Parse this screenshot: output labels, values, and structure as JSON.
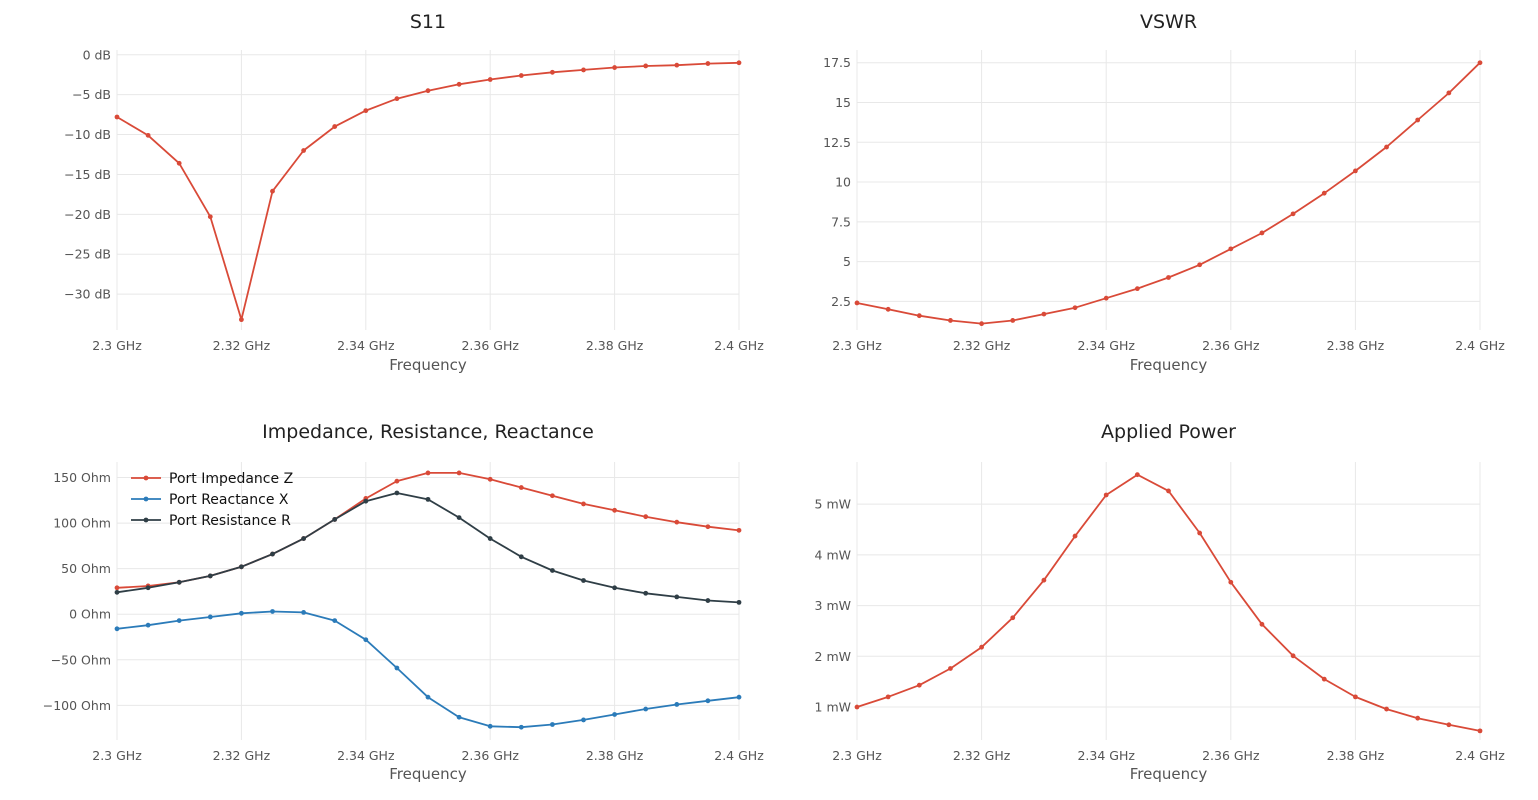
{
  "colors": {
    "red": "#d94a38",
    "blue": "#2b7bb9",
    "dark": "#2f3e46",
    "grid": "#e8e8e8"
  },
  "chart_data": [
    {
      "type": "line",
      "title": "S11",
      "xlabel": "Frequency",
      "ylabel": "",
      "x": [
        2.3,
        2.305,
        2.31,
        2.315,
        2.32,
        2.325,
        2.33,
        2.335,
        2.34,
        2.345,
        2.35,
        2.355,
        2.36,
        2.365,
        2.37,
        2.375,
        2.38,
        2.385,
        2.39,
        2.395,
        2.4
      ],
      "xlim": [
        2.3,
        2.4
      ],
      "ylim": [
        -34.5,
        0.6
      ],
      "x_ticks": [
        {
          "v": 2.3,
          "label": "2.3 GHz"
        },
        {
          "v": 2.32,
          "label": "2.32 GHz"
        },
        {
          "v": 2.34,
          "label": "2.34 GHz"
        },
        {
          "v": 2.36,
          "label": "2.36 GHz"
        },
        {
          "v": 2.38,
          "label": "2.38 GHz"
        },
        {
          "v": 2.4,
          "label": "2.4 GHz"
        }
      ],
      "y_ticks": [
        {
          "v": 0,
          "label": "0 dB"
        },
        {
          "v": -5,
          "label": "−5 dB"
        },
        {
          "v": -10,
          "label": "−10 dB"
        },
        {
          "v": -15,
          "label": "−15 dB"
        },
        {
          "v": -20,
          "label": "−20 dB"
        },
        {
          "v": -25,
          "label": "−25 dB"
        },
        {
          "v": -30,
          "label": "−30 dB"
        }
      ],
      "grid": true,
      "series": [
        {
          "color": "#d94a38",
          "values": [
            -7.8,
            -10.1,
            -13.6,
            -20.3,
            -33.2,
            -17.1,
            -12.0,
            -9.0,
            -7.0,
            -5.5,
            -4.5,
            -3.7,
            -3.1,
            -2.6,
            -2.2,
            -1.9,
            -1.6,
            -1.4,
            -1.3,
            -1.1,
            -1.0
          ]
        }
      ]
    },
    {
      "type": "line",
      "title": "VSWR",
      "xlabel": "Frequency",
      "ylabel": "",
      "x": [
        2.3,
        2.305,
        2.31,
        2.315,
        2.32,
        2.325,
        2.33,
        2.335,
        2.34,
        2.345,
        2.35,
        2.355,
        2.36,
        2.365,
        2.37,
        2.375,
        2.38,
        2.385,
        2.39,
        2.395,
        2.4
      ],
      "xlim": [
        2.3,
        2.4
      ],
      "ylim": [
        0.7,
        18.3
      ],
      "x_ticks": [
        {
          "v": 2.3,
          "label": "2.3 GHz"
        },
        {
          "v": 2.32,
          "label": "2.32 GHz"
        },
        {
          "v": 2.34,
          "label": "2.34 GHz"
        },
        {
          "v": 2.36,
          "label": "2.36 GHz"
        },
        {
          "v": 2.38,
          "label": "2.38 GHz"
        },
        {
          "v": 2.4,
          "label": "2.4 GHz"
        }
      ],
      "y_ticks": [
        {
          "v": 2.5,
          "label": "2.5"
        },
        {
          "v": 5,
          "label": "5"
        },
        {
          "v": 7.5,
          "label": "7.5"
        },
        {
          "v": 10,
          "label": "10"
        },
        {
          "v": 12.5,
          "label": "12.5"
        },
        {
          "v": 15,
          "label": "15"
        },
        {
          "v": 17.5,
          "label": "17.5"
        }
      ],
      "grid": true,
      "series": [
        {
          "color": "#d94a38",
          "values": [
            2.4,
            2.0,
            1.6,
            1.3,
            1.1,
            1.3,
            1.7,
            2.1,
            2.7,
            3.3,
            4.0,
            4.8,
            5.8,
            6.8,
            8.0,
            9.3,
            10.7,
            12.2,
            13.9,
            15.6,
            17.5
          ]
        }
      ]
    },
    {
      "type": "line",
      "title": "Impedance, Resistance, Reactance",
      "xlabel": "Frequency",
      "ylabel": "",
      "x": [
        2.3,
        2.305,
        2.31,
        2.315,
        2.32,
        2.325,
        2.33,
        2.335,
        2.34,
        2.345,
        2.35,
        2.355,
        2.36,
        2.365,
        2.37,
        2.375,
        2.38,
        2.385,
        2.39,
        2.395,
        2.4
      ],
      "xlim": [
        2.3,
        2.4
      ],
      "ylim": [
        -138,
        167
      ],
      "x_ticks": [
        {
          "v": 2.3,
          "label": "2.3 GHz"
        },
        {
          "v": 2.32,
          "label": "2.32 GHz"
        },
        {
          "v": 2.34,
          "label": "2.34 GHz"
        },
        {
          "v": 2.36,
          "label": "2.36 GHz"
        },
        {
          "v": 2.38,
          "label": "2.38 GHz"
        },
        {
          "v": 2.4,
          "label": "2.4 GHz"
        }
      ],
      "y_ticks": [
        {
          "v": -100,
          "label": "−100 Ohm"
        },
        {
          "v": -50,
          "label": "−50 Ohm"
        },
        {
          "v": 0,
          "label": "0 Ohm"
        },
        {
          "v": 50,
          "label": "50 Ohm"
        },
        {
          "v": 100,
          "label": "100 Ohm"
        },
        {
          "v": 150,
          "label": "150 Ohm"
        }
      ],
      "grid": true,
      "legend": "top-left",
      "series": [
        {
          "name": "Port Impedance Z",
          "color": "#d94a38",
          "values": [
            29,
            31,
            35,
            42,
            52,
            66,
            83,
            104,
            127,
            146,
            155,
            155,
            148,
            139,
            130,
            121,
            114,
            107,
            101,
            96,
            92
          ]
        },
        {
          "name": "Port Reactance X",
          "color": "#2b7bb9",
          "values": [
            -16,
            -12,
            -7,
            -3,
            1,
            3,
            2,
            -7,
            -28,
            -59,
            -91,
            -113,
            -123,
            -124,
            -121,
            -116,
            -110,
            -104,
            -99,
            -95,
            -91
          ]
        },
        {
          "name": "Port Resistance R",
          "color": "#2f3e46",
          "values": [
            24,
            29,
            35,
            42,
            52,
            66,
            83,
            104,
            124,
            133,
            126,
            106,
            83,
            63,
            48,
            37,
            29,
            23,
            19,
            15,
            13
          ]
        }
      ]
    },
    {
      "type": "line",
      "title": "Applied Power",
      "xlabel": "Frequency",
      "ylabel": "",
      "x": [
        2.3,
        2.305,
        2.31,
        2.315,
        2.32,
        2.325,
        2.33,
        2.335,
        2.34,
        2.345,
        2.35,
        2.355,
        2.36,
        2.365,
        2.37,
        2.375,
        2.38,
        2.385,
        2.39,
        2.395,
        2.4
      ],
      "xlim": [
        2.3,
        2.4
      ],
      "ylim": [
        0.35,
        5.83
      ],
      "x_ticks": [
        {
          "v": 2.3,
          "label": "2.3 GHz"
        },
        {
          "v": 2.32,
          "label": "2.32 GHz"
        },
        {
          "v": 2.34,
          "label": "2.34 GHz"
        },
        {
          "v": 2.36,
          "label": "2.36 GHz"
        },
        {
          "v": 2.38,
          "label": "2.38 GHz"
        },
        {
          "v": 2.4,
          "label": "2.4 GHz"
        }
      ],
      "y_ticks": [
        {
          "v": 1,
          "label": "1 mW"
        },
        {
          "v": 2,
          "label": "2 mW"
        },
        {
          "v": 3,
          "label": "3 mW"
        },
        {
          "v": 4,
          "label": "4 mW"
        },
        {
          "v": 5,
          "label": "5 mW"
        }
      ],
      "grid": true,
      "series": [
        {
          "color": "#d94a38",
          "values": [
            1.0,
            1.2,
            1.43,
            1.76,
            2.18,
            2.76,
            3.5,
            4.37,
            5.18,
            5.58,
            5.26,
            4.43,
            3.46,
            2.63,
            2.01,
            1.55,
            1.2,
            0.96,
            0.78,
            0.65,
            0.53
          ]
        }
      ]
    }
  ]
}
